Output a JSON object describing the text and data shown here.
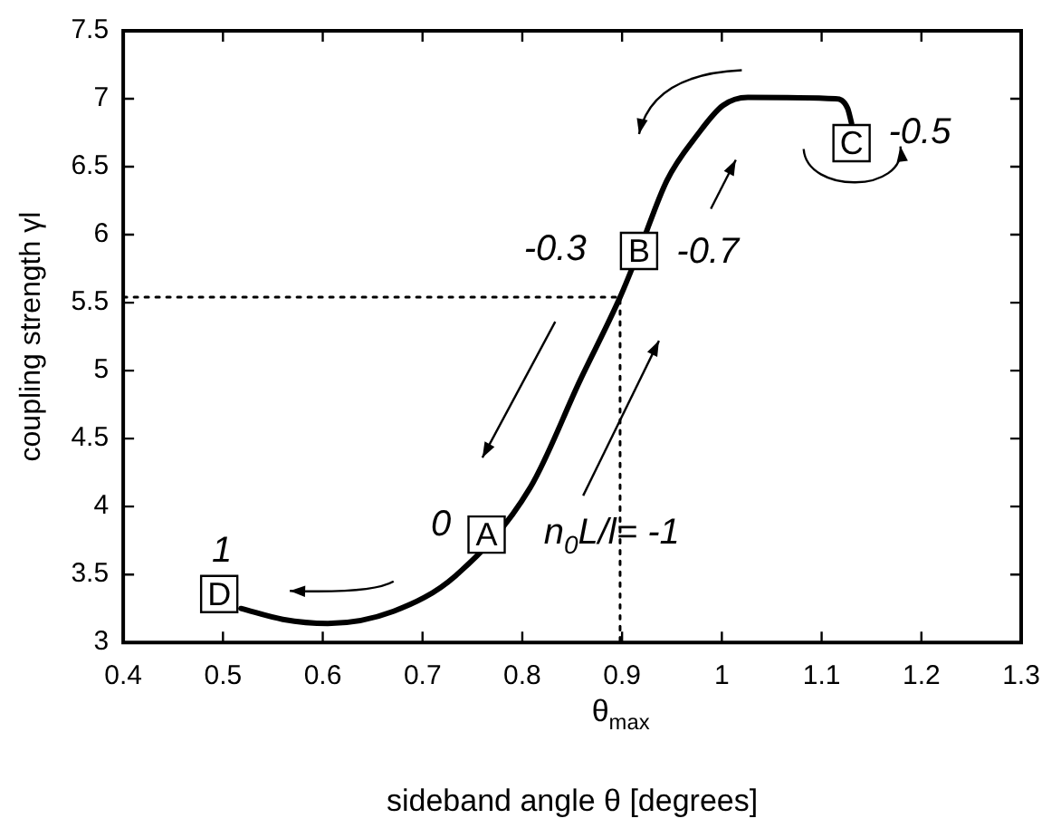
{
  "chart_data": {
    "type": "line",
    "xlabel": "sideband angle θ [degrees]",
    "ylabel": "coupling strength γl",
    "xlim": [
      0.4,
      1.3
    ],
    "ylim": [
      3,
      7.5
    ],
    "xticks": [
      0.4,
      0.5,
      0.6,
      0.7,
      0.8,
      0.9,
      1,
      1.1,
      1.2,
      1.3
    ],
    "yticks": [
      3,
      3.5,
      4,
      4.5,
      5,
      5.5,
      6,
      6.5,
      7,
      7.5
    ],
    "grid": false,
    "legend": false,
    "marker": "none",
    "series": [
      {
        "color": "#000000",
        "line_style": "solid",
        "x": [
          0.518,
          0.56,
          0.605,
          0.671,
          0.733,
          0.808,
          0.858,
          0.898,
          0.917,
          0.945,
          0.976,
          1.001,
          1.026,
          1.114,
          1.126,
          1.13
        ],
        "values": [
          3.25,
          3.17,
          3.14,
          3.23,
          3.49,
          4.14,
          4.93,
          5.54,
          5.88,
          6.4,
          6.74,
          6.95,
          7.01,
          7,
          6.93,
          6.82
        ]
      },
      {
        "color": "#000000",
        "line_style": "dotted",
        "x": [
          0.4,
          0.898,
          0.898
        ],
        "values": [
          5.54,
          5.54,
          3
        ]
      }
    ],
    "annotations": [
      {
        "text": "A",
        "x": 0.786,
        "y": 3.94
      },
      {
        "text": "B",
        "x": 0.917,
        "y": 5.88
      },
      {
        "text": "C",
        "x": 1.13,
        "y": 6.82
      },
      {
        "text": "D",
        "x": 0.518,
        "y": 3.25
      },
      "0",
      "n$_{0}$L/l= -1",
      "-0.3",
      "-0.7",
      "-0.5",
      "1",
      "θ$_{max}$"
    ]
  }
}
